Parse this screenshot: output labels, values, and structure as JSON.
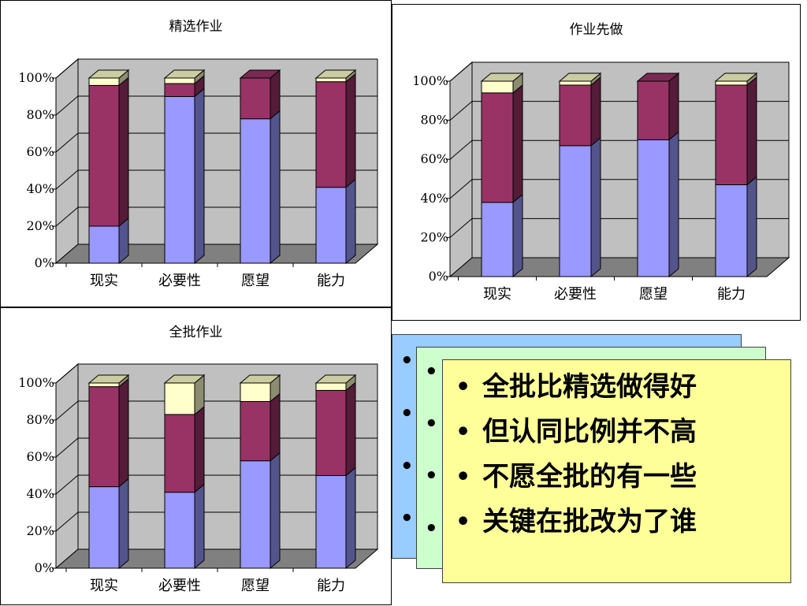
{
  "colors": {
    "series_low": "#9999ff",
    "series_mid": "#993366",
    "series_high": "#ffffcc",
    "plot_back": "#c0c0c0",
    "plot_floor": "#808080",
    "card_back": "#99ccff",
    "card_middle": "#ccffcc",
    "card_front": "#ffff99"
  },
  "chart_data": [
    {
      "type": "bar",
      "stacked": "percent",
      "title": "精选作业",
      "categories": [
        "现实",
        "必要性",
        "愿望",
        "能力"
      ],
      "series": [
        {
          "values": [
            20,
            90,
            78,
            41
          ]
        },
        {
          "values": [
            76,
            7,
            22,
            57
          ]
        },
        {
          "values": [
            4,
            3,
            0,
            2
          ]
        }
      ],
      "yticks": [
        "0%",
        "20%",
        "40%",
        "60%",
        "80%",
        "100%"
      ],
      "ylim": [
        0,
        100
      ],
      "grid": true,
      "legend": "none"
    },
    {
      "type": "bar",
      "stacked": "percent",
      "title": "作业先做",
      "categories": [
        "现实",
        "必要性",
        "愿望",
        "能力"
      ],
      "series": [
        {
          "values": [
            38,
            67,
            70,
            47
          ]
        },
        {
          "values": [
            56,
            31,
            30,
            51
          ]
        },
        {
          "values": [
            6,
            2,
            0,
            2
          ]
        }
      ],
      "yticks": [
        "0%",
        "20%",
        "40%",
        "60%",
        "80%",
        "100%"
      ],
      "ylim": [
        0,
        100
      ],
      "grid": true,
      "legend": "none"
    },
    {
      "type": "bar",
      "stacked": "percent",
      "title": "全批作业",
      "categories": [
        "现实",
        "必要性",
        "愿望",
        "能力"
      ],
      "series": [
        {
          "values": [
            44,
            41,
            58,
            50
          ]
        },
        {
          "values": [
            54,
            42,
            32,
            46
          ]
        },
        {
          "values": [
            2,
            17,
            10,
            4
          ]
        }
      ],
      "yticks": [
        "0%",
        "20%",
        "40%",
        "60%",
        "80%",
        "100%"
      ],
      "ylim": [
        0,
        100
      ],
      "grid": true,
      "legend": "none"
    }
  ],
  "bullets": {
    "items": [
      "全批比精选做得好",
      "但认同比例并不高",
      "不愿全批的有一些",
      "关键在批改为了谁"
    ],
    "marker": "•"
  }
}
